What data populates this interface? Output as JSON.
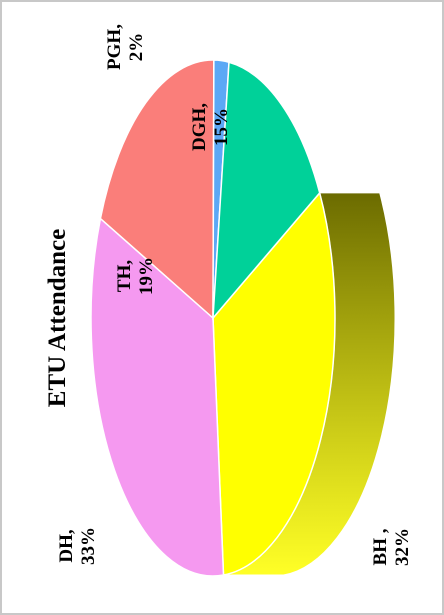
{
  "chart_data": {
    "type": "pie",
    "style": "3d-rotated",
    "title": "ETU Attendance",
    "series": [
      {
        "name": "BH",
        "label_line1": "BH ,",
        "label_line2": "32%",
        "value": 32,
        "color": "#ffff00",
        "side_color": "#6b6b00"
      },
      {
        "name": "DH",
        "label_line1": "DH,",
        "label_line2": "33%",
        "value": 33,
        "color": "#f599f0",
        "side_color": "#9a4f95"
      },
      {
        "name": "TH",
        "label_line1": "TH,",
        "label_line2": "19%",
        "value": 19,
        "color": "#fa7e7a",
        "side_color": "#9a3e3a"
      },
      {
        "name": "PGH",
        "label_line1": "PGH,",
        "label_line2": "2%",
        "value": 2,
        "color": "#5ca8f5",
        "side_color": "#2c5a8a"
      },
      {
        "name": "DGH",
        "label_line1": "DGH,",
        "label_line2": "15%",
        "value": 15,
        "color": "#00d199",
        "side_color": "#005c44"
      }
    ]
  },
  "colors": {
    "frame": "#c8c8c8",
    "slice_edge": "#ffffff"
  }
}
